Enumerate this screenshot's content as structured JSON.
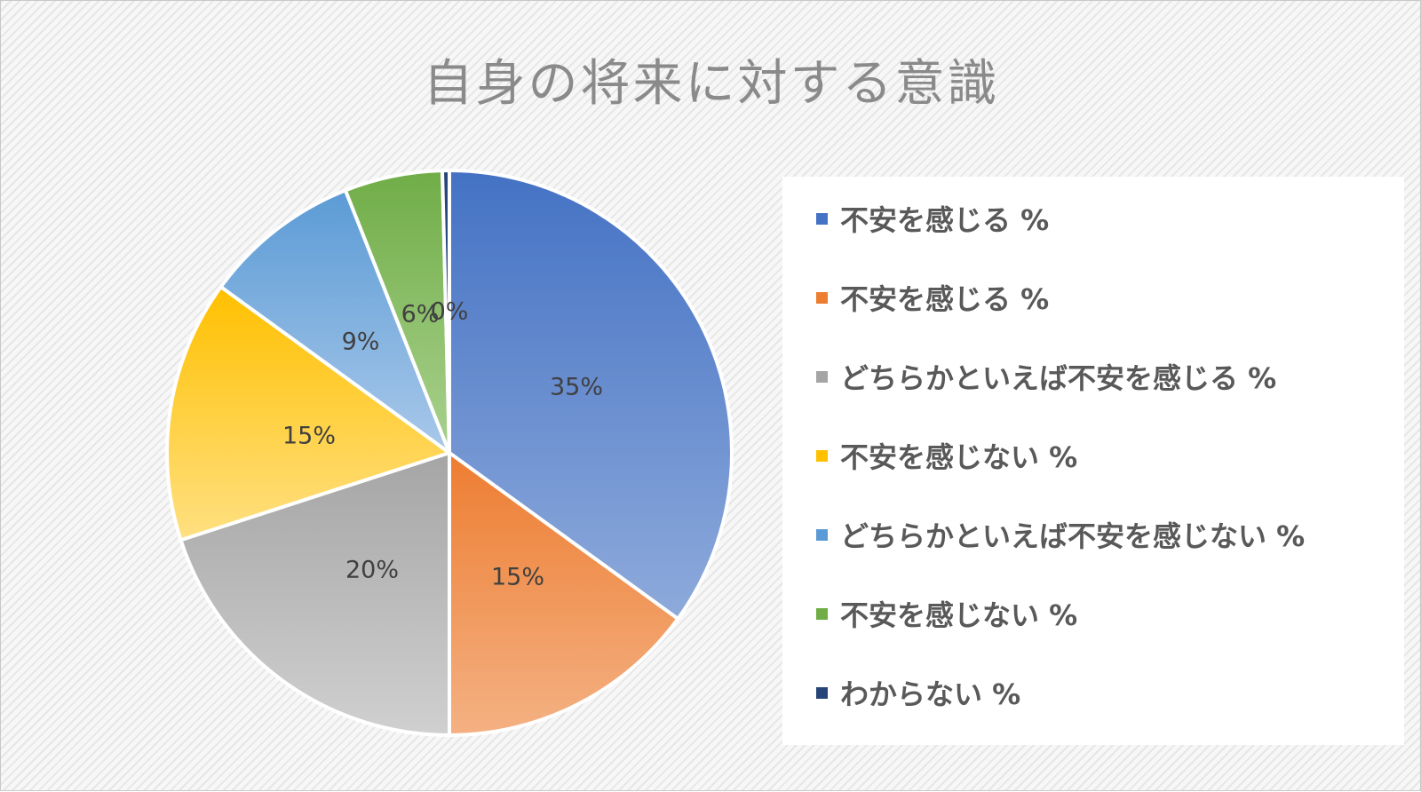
{
  "chart_data": {
    "type": "pie",
    "title": "自身の将来に対する意識",
    "legend_position": "right",
    "slices": [
      {
        "label": "不安を感じる %",
        "value": 35,
        "display": "35%",
        "color": "#4472c4",
        "color_light": "#8eaadb"
      },
      {
        "label": "不安を感じる %",
        "value": 15,
        "display": "15%",
        "color": "#ed7d31",
        "color_light": "#f4b183"
      },
      {
        "label": "どちらかといえば不安を感じる %",
        "value": 20,
        "display": "20%",
        "color": "#a5a5a5",
        "color_light": "#d0d0d0"
      },
      {
        "label": "不安を感じない %",
        "value": 15,
        "display": "15%",
        "color": "#ffc000",
        "color_light": "#ffe082"
      },
      {
        "label": "どちらかといえば不安を感じない %",
        "value": 9,
        "display": "9%",
        "color": "#5b9bd5",
        "color_light": "#a9c8ea"
      },
      {
        "label": "不安を感じない %",
        "value": 5.6,
        "display": "6%",
        "color": "#70ad47",
        "color_light": "#a9d18e"
      },
      {
        "label": "わからない %",
        "value": 0.4,
        "display": "0%",
        "color": "#264478",
        "color_light": "#3a5f9e"
      }
    ]
  }
}
